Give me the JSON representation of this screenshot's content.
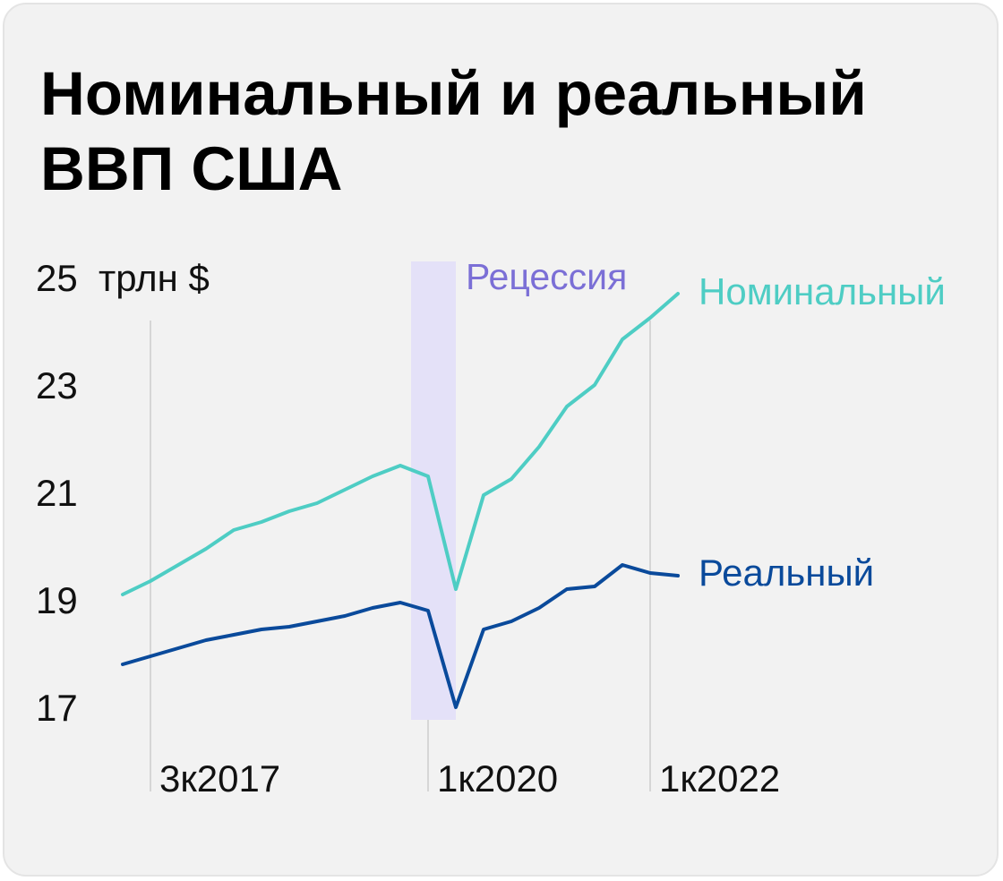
{
  "colors": {
    "background": "#f2f2f2",
    "nominal": "#4ecdc4",
    "real": "#0a4a9b",
    "recession_band": "#e4e1f8",
    "recession_text": "#7b6fd6",
    "gridline": "#cccccc"
  },
  "chart_data": {
    "type": "line",
    "title": "Номинальный и реальный ВВП США",
    "ylabel": "трлн $",
    "ylim": [
      17,
      25
    ],
    "yticks": [
      {
        "value": 25,
        "label": "25"
      },
      {
        "value": 23,
        "label": "23"
      },
      {
        "value": 21,
        "label": "21"
      },
      {
        "value": 19,
        "label": "19"
      },
      {
        "value": 17,
        "label": "17"
      }
    ],
    "x": [
      "2к2017",
      "3к2017",
      "4к2017",
      "1к2018",
      "2к2018",
      "3к2018",
      "4к2018",
      "1к2019",
      "2к2019",
      "3к2019",
      "4к2019",
      "1к2020",
      "2к2020",
      "3к2020",
      "4к2020",
      "1к2021",
      "2к2021",
      "3к2021",
      "4к2021",
      "1к2022",
      "2к2022"
    ],
    "xticks": [
      {
        "x": "3к2017",
        "label": "3к2017"
      },
      {
        "x": "1к2020",
        "label": "1к2020"
      },
      {
        "x": "1к2022",
        "label": "1к2022"
      }
    ],
    "series": [
      {
        "name": "Номинальный",
        "color": "#4ecdc4",
        "values": [
          19.1,
          19.35,
          19.65,
          19.95,
          20.3,
          20.45,
          20.65,
          20.8,
          21.05,
          21.3,
          21.5,
          21.3,
          19.2,
          20.95,
          21.25,
          21.85,
          22.6,
          23.0,
          23.85,
          24.25,
          24.7
        ]
      },
      {
        "name": "Реальный",
        "color": "#0a4a9b",
        "values": [
          17.8,
          17.95,
          18.1,
          18.25,
          18.35,
          18.45,
          18.5,
          18.6,
          18.7,
          18.85,
          18.95,
          18.8,
          17.0,
          18.45,
          18.6,
          18.85,
          19.2,
          19.25,
          19.65,
          19.5,
          19.45
        ]
      }
    ],
    "annotations": {
      "recession_label": "Рецессия",
      "recession_period": [
        "4к2019",
        "2к2020"
      ]
    },
    "grid": false,
    "legend": "direct labels at line ends, right"
  }
}
